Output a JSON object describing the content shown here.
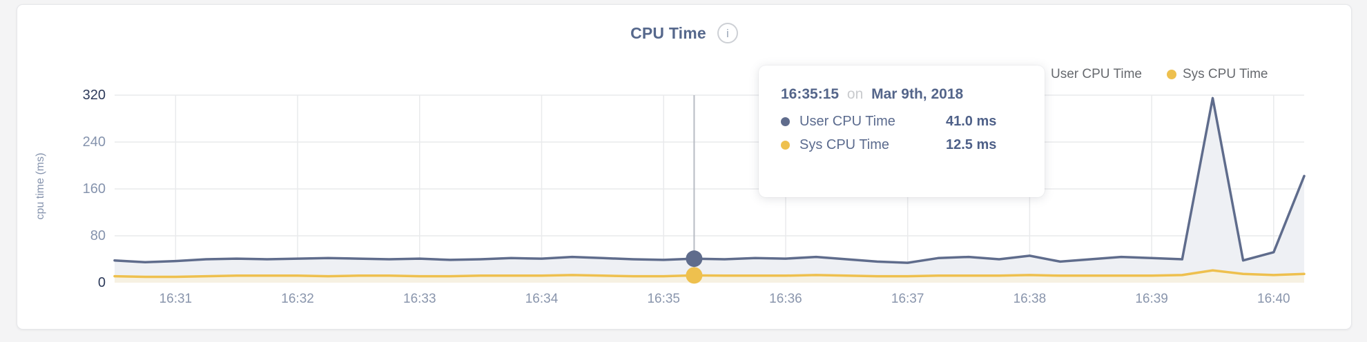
{
  "header": {
    "title": "CPU Time",
    "info_glyph": "i"
  },
  "legend": {
    "items": [
      {
        "label": "User CPU Time",
        "color": "#5f6c8c"
      },
      {
        "label": "Sys CPU Time",
        "color": "#eec04e"
      }
    ]
  },
  "axes": {
    "y_label": "cpu time (ms)",
    "y_ticks": [
      0,
      80,
      160,
      240,
      320
    ],
    "y_ticks_emphasized": [
      0,
      320
    ],
    "x_ticks": [
      "16:31",
      "16:32",
      "16:33",
      "16:34",
      "16:35",
      "16:36",
      "16:37",
      "16:38",
      "16:39",
      "16:40"
    ]
  },
  "chart_data": {
    "type": "area",
    "title": "CPU Time",
    "ylabel": "cpu time (ms)",
    "ylim": [
      0,
      320
    ],
    "grid": true,
    "legend_position": "top-right",
    "x": [
      "16:30:30",
      "16:30:45",
      "16:31:00",
      "16:31:15",
      "16:31:30",
      "16:31:45",
      "16:32:00",
      "16:32:15",
      "16:32:30",
      "16:32:45",
      "16:33:00",
      "16:33:15",
      "16:33:30",
      "16:33:45",
      "16:34:00",
      "16:34:15",
      "16:34:30",
      "16:34:45",
      "16:35:00",
      "16:35:15",
      "16:35:30",
      "16:35:45",
      "16:36:00",
      "16:36:15",
      "16:36:30",
      "16:36:45",
      "16:37:00",
      "16:37:15",
      "16:37:30",
      "16:37:45",
      "16:38:00",
      "16:38:15",
      "16:38:30",
      "16:38:45",
      "16:39:00",
      "16:39:15",
      "16:39:30",
      "16:39:45",
      "16:40:00",
      "16:40:15"
    ],
    "series": [
      {
        "name": "User CPU Time",
        "color": "#5f6c8c",
        "fill": "#eef0f4",
        "values": [
          38,
          35,
          37,
          40,
          41,
          40,
          41,
          42,
          41,
          40,
          41,
          39,
          40,
          42,
          41,
          44,
          42,
          40,
          39,
          41,
          40,
          42,
          41,
          44,
          40,
          36,
          34,
          42,
          44,
          40,
          46,
          36,
          40,
          44,
          42,
          40,
          315,
          38,
          52,
          182
        ]
      },
      {
        "name": "Sys CPU Time",
        "color": "#eec04e",
        "fill": "#f6f1e2",
        "values": [
          11,
          10,
          10,
          11,
          12,
          12,
          12,
          11,
          12,
          12,
          11,
          11,
          12,
          12,
          12,
          13,
          12,
          11,
          11,
          12.5,
          12,
          12,
          12,
          13,
          12,
          11,
          11,
          12,
          12,
          12,
          13,
          12,
          12,
          12,
          12,
          13,
          21,
          15,
          13,
          15
        ]
      }
    ]
  },
  "hover": {
    "time": "16:35:15"
  },
  "tooltip": {
    "time": "16:35:15",
    "separator": "on",
    "date": "Mar 9th, 2018",
    "rows": [
      {
        "label": "User CPU Time",
        "value": "41.0 ms",
        "color": "#5f6c8c"
      },
      {
        "label": "Sys CPU Time",
        "value": "12.5 ms",
        "color": "#eec04e"
      }
    ]
  },
  "colors": {
    "grid": "#e9eaec",
    "crosshair": "#b7bbc4",
    "tick_text": "#8593ad",
    "tick_text_emphasized": "#2d3a5a",
    "title_text": "#56688c"
  }
}
